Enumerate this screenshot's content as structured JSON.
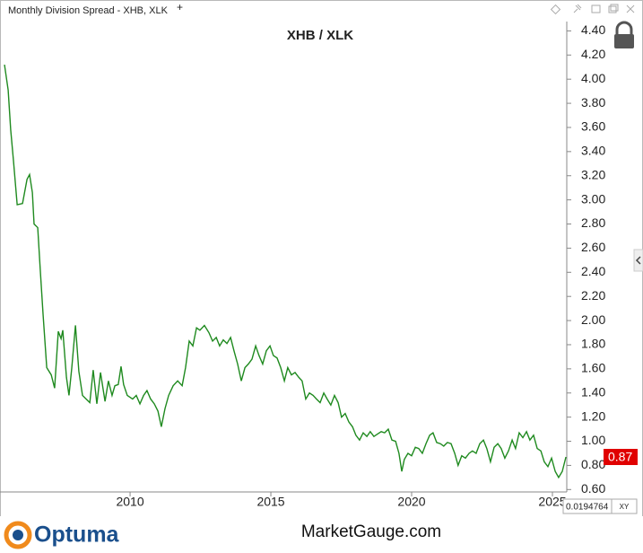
{
  "window": {
    "title": "Monthly Division Spread - XHB, XLK"
  },
  "chart_data": {
    "type": "line",
    "title": "XHB / XLK",
    "x": [
      2005.54,
      2005.67,
      2005.76,
      2005.86,
      2005.99,
      2006.18,
      2006.34,
      2006.43,
      2006.53,
      2006.59,
      2006.72,
      2006.81,
      2006.91,
      2007.04,
      2007.2,
      2007.32,
      2007.45,
      2007.55,
      2007.61,
      2007.74,
      2007.83,
      2007.93,
      2008.06,
      2008.18,
      2008.31,
      2008.44,
      2008.57,
      2008.69,
      2008.82,
      2008.95,
      2009.11,
      2009.23,
      2009.36,
      2009.46,
      2009.58,
      2009.68,
      2009.77,
      2009.9,
      2010.09,
      2010.22,
      2010.35,
      2010.48,
      2010.6,
      2010.73,
      2010.86,
      2010.99,
      2011.11,
      2011.24,
      2011.37,
      2011.53,
      2011.69,
      2011.85,
      2011.97,
      2012.1,
      2012.23,
      2012.36,
      2012.48,
      2012.64,
      2012.8,
      2012.93,
      2013.06,
      2013.18,
      2013.31,
      2013.44,
      2013.57,
      2013.69,
      2013.82,
      2013.95,
      2014.08,
      2014.2,
      2014.33,
      2014.46,
      2014.58,
      2014.71,
      2014.84,
      2014.97,
      2015.09,
      2015.22,
      2015.35,
      2015.48,
      2015.6,
      2015.73,
      2015.86,
      2015.99,
      2016.11,
      2016.24,
      2016.37,
      2016.5,
      2016.62,
      2016.75,
      2016.88,
      2017.0,
      2017.13,
      2017.26,
      2017.39,
      2017.51,
      2017.64,
      2017.77,
      2017.9,
      2018.02,
      2018.15,
      2018.28,
      2018.41,
      2018.53,
      2018.66,
      2018.79,
      2018.92,
      2019.04,
      2019.17,
      2019.3,
      2019.43,
      2019.55,
      2019.65,
      2019.74,
      2019.87,
      2020.0,
      2020.13,
      2020.25,
      2020.38,
      2020.51,
      2020.64,
      2020.76,
      2020.89,
      2021.02,
      2021.14,
      2021.27,
      2021.4,
      2021.53,
      2021.65,
      2021.78,
      2021.91,
      2022.04,
      2022.16,
      2022.29,
      2022.42,
      2022.55,
      2022.67,
      2022.8,
      2022.93,
      2023.06,
      2023.18,
      2023.31,
      2023.44,
      2023.57,
      2023.69,
      2023.82,
      2023.95,
      2024.08,
      2024.2,
      2024.33,
      2024.46,
      2024.59,
      2024.71,
      2024.84,
      2024.97,
      2025.1,
      2025.22,
      2025.35,
      2025.48
    ],
    "series": [
      {
        "name": "XHB / XLK",
        "color": "#1f8a1f",
        "values": [
          4.12,
          3.91,
          3.58,
          3.32,
          2.96,
          2.97,
          3.17,
          3.21,
          3.06,
          2.8,
          2.77,
          2.42,
          2.05,
          1.61,
          1.55,
          1.44,
          1.91,
          1.85,
          1.92,
          1.53,
          1.38,
          1.61,
          1.96,
          1.58,
          1.38,
          1.35,
          1.32,
          1.59,
          1.31,
          1.57,
          1.33,
          1.5,
          1.38,
          1.46,
          1.47,
          1.62,
          1.47,
          1.38,
          1.35,
          1.38,
          1.31,
          1.38,
          1.42,
          1.35,
          1.31,
          1.25,
          1.12,
          1.27,
          1.38,
          1.46,
          1.5,
          1.46,
          1.61,
          1.83,
          1.79,
          1.94,
          1.92,
          1.96,
          1.9,
          1.83,
          1.86,
          1.79,
          1.84,
          1.81,
          1.86,
          1.75,
          1.64,
          1.5,
          1.61,
          1.64,
          1.68,
          1.79,
          1.71,
          1.64,
          1.75,
          1.79,
          1.71,
          1.69,
          1.61,
          1.5,
          1.61,
          1.55,
          1.57,
          1.53,
          1.5,
          1.35,
          1.4,
          1.38,
          1.35,
          1.32,
          1.4,
          1.35,
          1.3,
          1.38,
          1.32,
          1.2,
          1.23,
          1.16,
          1.12,
          1.05,
          1.01,
          1.07,
          1.04,
          1.08,
          1.04,
          1.06,
          1.08,
          1.07,
          1.1,
          1.01,
          1.0,
          0.9,
          0.75,
          0.85,
          0.9,
          0.88,
          0.95,
          0.94,
          0.9,
          0.98,
          1.05,
          1.07,
          0.99,
          0.98,
          0.96,
          0.99,
          0.98,
          0.9,
          0.8,
          0.88,
          0.86,
          0.9,
          0.92,
          0.9,
          0.98,
          1.01,
          0.94,
          0.83,
          0.95,
          0.98,
          0.94,
          0.86,
          0.92,
          1.01,
          0.94,
          1.07,
          1.03,
          1.08,
          1.01,
          1.05,
          0.94,
          0.92,
          0.83,
          0.79,
          0.86,
          0.75,
          0.7,
          0.75,
          0.87
        ]
      }
    ],
    "xlim": [
      2005.38,
      2025.51
    ],
    "xticks": [
      2010,
      2015,
      2020,
      2025
    ],
    "ylim": [
      0.58,
      4.47
    ],
    "yticks": [
      {
        "value": 0.6,
        "label": "0.60"
      },
      {
        "value": 0.8,
        "label": "0.80"
      },
      {
        "value": 1.0,
        "label": "1.00"
      },
      {
        "value": 1.2,
        "label": "1.20"
      },
      {
        "value": 1.4,
        "label": "1.40"
      },
      {
        "value": 1.6,
        "label": "1.60"
      },
      {
        "value": 1.8,
        "label": "1.80"
      },
      {
        "value": 2.0,
        "label": "2.00"
      },
      {
        "value": 2.2,
        "label": "2.20"
      },
      {
        "value": 2.4,
        "label": "2.40"
      },
      {
        "value": 2.6,
        "label": "2.60"
      },
      {
        "value": 2.8,
        "label": "2.80"
      },
      {
        "value": 3.0,
        "label": "3.00"
      },
      {
        "value": 3.2,
        "label": "3.20"
      },
      {
        "value": 3.4,
        "label": "3.40"
      },
      {
        "value": 3.6,
        "label": "3.60"
      },
      {
        "value": 3.8,
        "label": "3.80"
      },
      {
        "value": 4.0,
        "label": "4.00"
      },
      {
        "value": 4.2,
        "label": "4.20"
      },
      {
        "value": 4.4,
        "label": "4.40"
      }
    ],
    "grid": false
  },
  "axis_readout": "0.0194764",
  "readout_mode": "XY",
  "footer": {
    "brand": "Optuma",
    "site": "MarketGauge.com"
  }
}
